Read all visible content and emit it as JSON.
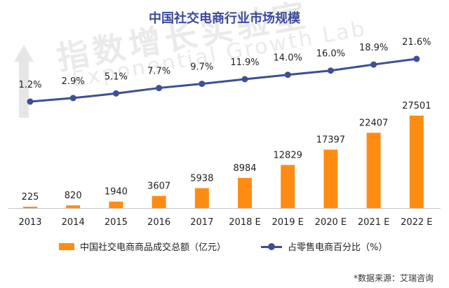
{
  "chart_data": {
    "type": "bar+line",
    "title": "中国社交电商行业市场规模",
    "categories": [
      "2013",
      "2014",
      "2015",
      "2016",
      "2017",
      "2018 E",
      "2019 E",
      "2020 E",
      "2021 E",
      "2022 E"
    ],
    "series": [
      {
        "name": "中国社交电商商品成交总额（亿元）",
        "type": "bar",
        "color": "#ff8c12",
        "values": [
          225,
          820,
          1940,
          3607,
          5938,
          8984,
          12829,
          17397,
          22407,
          27501
        ],
        "labels": [
          "225",
          "820",
          "1940",
          "3607",
          "5938",
          "8984",
          "12829",
          "17397",
          "22407",
          "27501"
        ]
      },
      {
        "name": "占零售电商百分比（%）",
        "type": "line",
        "color": "#3d4f95",
        "values": [
          1.2,
          2.9,
          5.1,
          7.7,
          9.7,
          11.9,
          14.0,
          16.0,
          18.9,
          21.6
        ],
        "labels": [
          "1.2%",
          "2.9%",
          "5.1%",
          "7.7%",
          "9.7%",
          "11.9%",
          "14.0%",
          "16.0%",
          "18.9%",
          "21.6%"
        ]
      }
    ],
    "legend": "bottom"
  },
  "watermark": {
    "cn": "指数增长实验室",
    "en": "Exponential Growth Lab"
  },
  "source": "*数据来源：艾瑞咨询"
}
